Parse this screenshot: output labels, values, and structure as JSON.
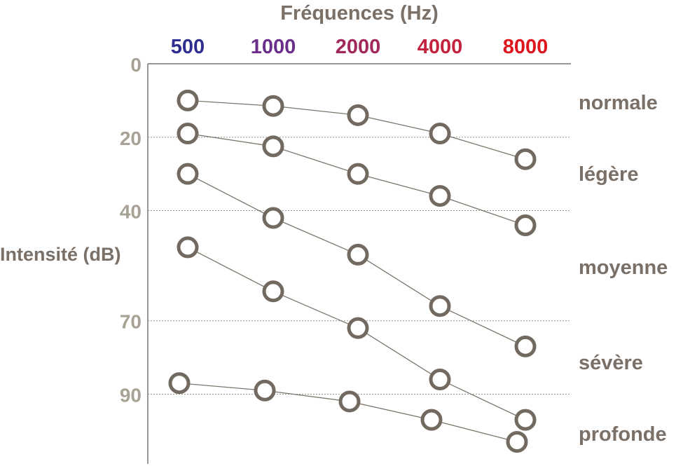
{
  "chart_data": {
    "type": "line",
    "xlabel": "Fréquences (Hz)",
    "ylabel": "Intensité (dB)",
    "categories": [
      "500",
      "1000",
      "2000",
      "4000",
      "8000"
    ],
    "category_colors": [
      "#2e2e8f",
      "#6b2e8a",
      "#a0285a",
      "#c4233f",
      "#e0161e"
    ],
    "y_ticks": [
      "0",
      "20",
      "40",
      "70",
      "90"
    ],
    "ylim": [
      0,
      109
    ],
    "y_inverted": true,
    "grid": "dotted horizontal at 20, 40, 70, 90",
    "bands": [
      "normale",
      "légère",
      "moyenne",
      "sévère",
      "profonde"
    ],
    "series": [
      {
        "values": [
          10,
          11.5,
          14,
          19,
          26
        ]
      },
      {
        "values": [
          19,
          22.5,
          30,
          36,
          44
        ]
      },
      {
        "values": [
          30,
          42,
          52,
          66,
          77
        ]
      },
      {
        "values": [
          50,
          62,
          72,
          86,
          97
        ]
      },
      {
        "values": [
          87,
          89,
          92,
          97,
          103
        ]
      }
    ],
    "colors": {
      "text": "#7a7068",
      "ticks": "#a8a296",
      "marker": "#726a60",
      "line": "#7d756b",
      "grid": "#999999"
    }
  }
}
